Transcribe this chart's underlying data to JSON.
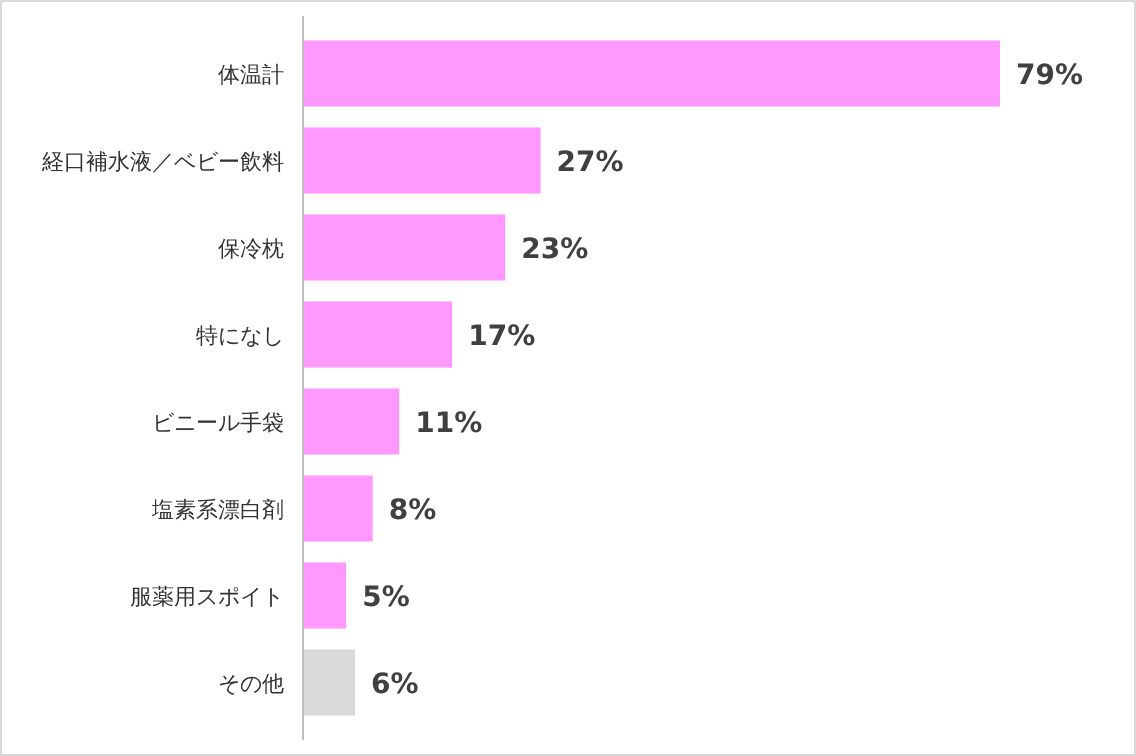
{
  "chart_data": {
    "type": "bar",
    "orientation": "horizontal",
    "value_labels": [
      "79%",
      "27%",
      "23%",
      "17%",
      "11%",
      "8%",
      "5%",
      "6%"
    ],
    "categories": [
      "体温計",
      "経口補水液／ベビー飲料",
      "保冷枕",
      "特になし",
      "ビニール手袋",
      "塩素系漂白剤",
      "服薬用スポイト",
      "その他"
    ],
    "values": [
      79,
      27,
      23,
      17,
      11,
      8,
      5,
      6
    ],
    "colors": [
      "#ff99ff",
      "#ff99ff",
      "#ff99ff",
      "#ff99ff",
      "#ff99ff",
      "#ff99ff",
      "#ff99ff",
      "#d9d9d9"
    ]
  }
}
